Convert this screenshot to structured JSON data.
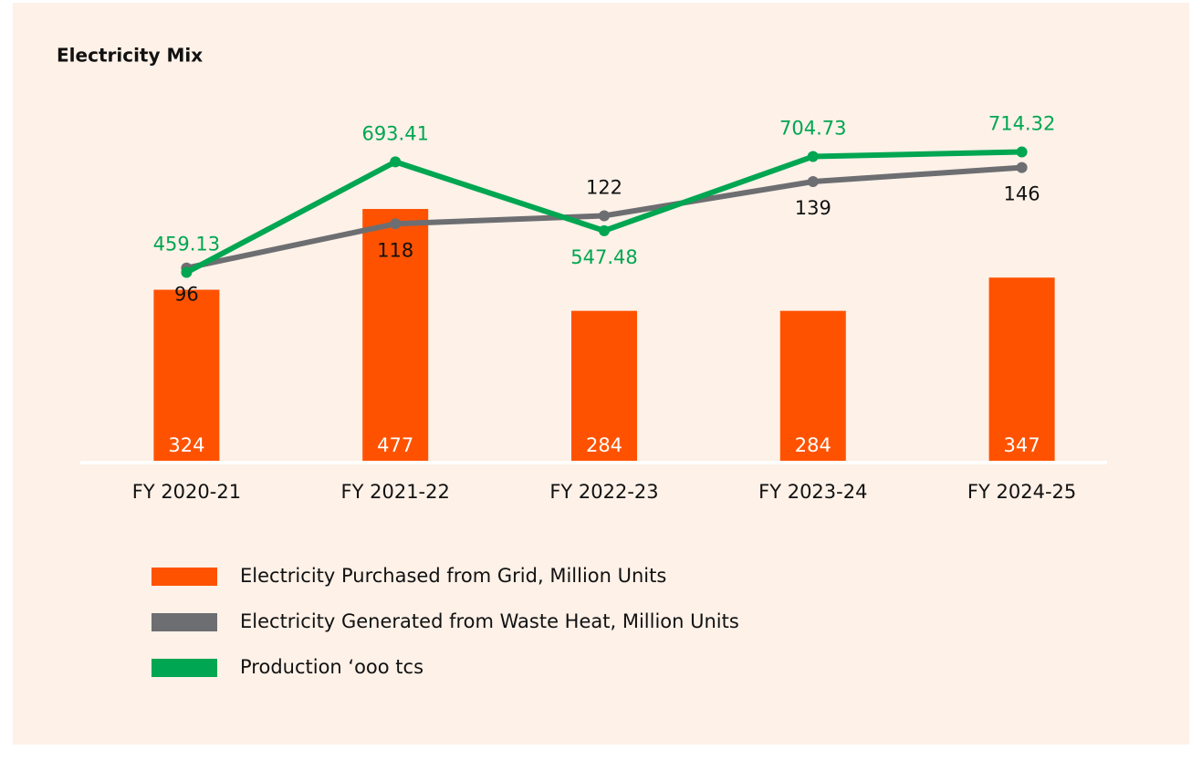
{
  "chart_data": {
    "type": "bar",
    "title": "Electricity Mix",
    "categories": [
      "FY 2020-21",
      "FY 2021-22",
      "FY 2022-23",
      "FY 2023-24",
      "FY 2024-25"
    ],
    "ylim": [
      0,
      700
    ],
    "y2lim": [
      0,
      184
    ],
    "y3lim": [
      60,
      843
    ],
    "series": [
      {
        "name": "Electricity Purchased from Grid, Million Units",
        "color": "#ff5200",
        "type": "bar",
        "values": [
          324,
          477,
          284,
          284,
          347
        ]
      },
      {
        "name": "Electricity Generated from Waste Heat, Million Units",
        "color": "#6d6e71",
        "type": "line",
        "axis": "y2",
        "values": [
          96,
          118,
          122,
          139,
          146
        ]
      },
      {
        "name": "Production ‘ooo tcs",
        "color": "#00a651",
        "type": "line",
        "axis": "y3",
        "values": [
          459.13,
          693.41,
          547.48,
          704.73,
          714.32
        ]
      }
    ]
  }
}
